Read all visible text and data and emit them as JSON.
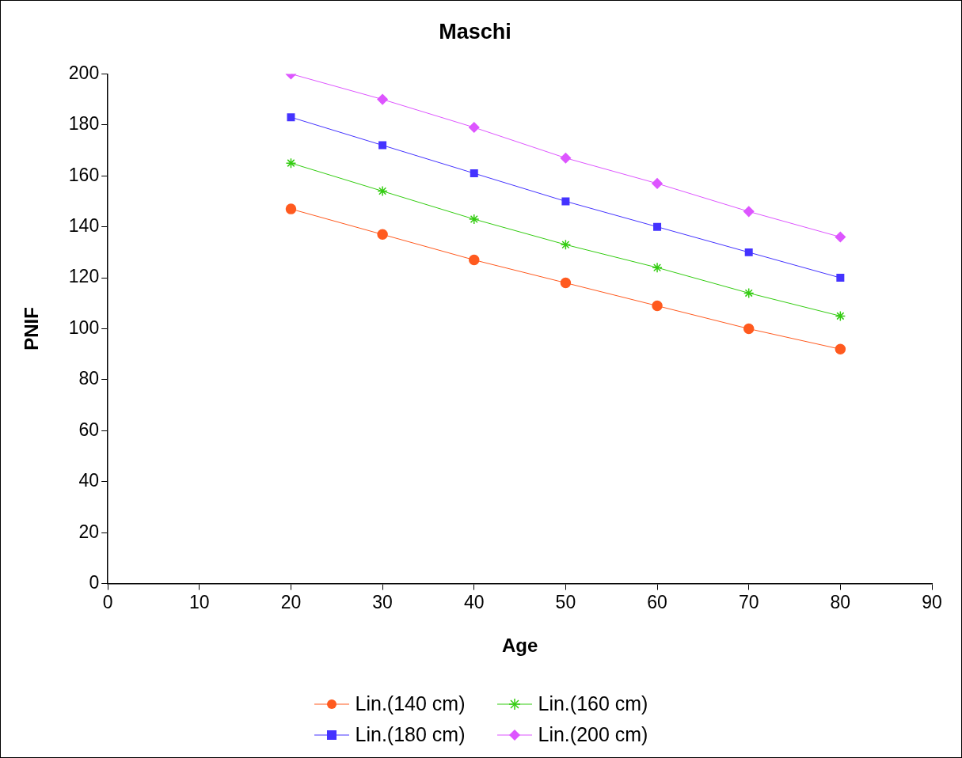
{
  "chart_data": {
    "type": "line",
    "title": "Maschi",
    "xlabel": "Age",
    "ylabel": "PNIF",
    "x": [
      20,
      30,
      40,
      50,
      60,
      70,
      80
    ],
    "series": [
      {
        "name": "Lin.(140 cm)",
        "color": "#ff5a1f",
        "marker": "circle",
        "values": [
          147,
          137,
          127,
          118,
          109,
          100,
          92
        ]
      },
      {
        "name": "Lin.(160 cm)",
        "color": "#33cc11",
        "marker": "cross",
        "values": [
          165,
          154,
          143,
          133,
          124,
          114,
          105
        ]
      },
      {
        "name": "Lin.(180 cm)",
        "color": "#4433ff",
        "marker": "square",
        "values": [
          183,
          172,
          161,
          150,
          140,
          130,
          120
        ]
      },
      {
        "name": "Lin.(200 cm)",
        "color": "#dd55ff",
        "marker": "diamond",
        "values": [
          200,
          190,
          179,
          167,
          157,
          146,
          136
        ]
      }
    ],
    "xlim": [
      0,
      90
    ],
    "xticks": [
      0,
      10,
      20,
      30,
      40,
      50,
      60,
      70,
      80,
      90
    ],
    "ylim": [
      0,
      200
    ],
    "yticks": [
      0,
      20,
      40,
      60,
      80,
      100,
      120,
      140,
      160,
      180,
      200
    ],
    "grid": false,
    "legend": "bottom",
    "line_style": "solid"
  }
}
